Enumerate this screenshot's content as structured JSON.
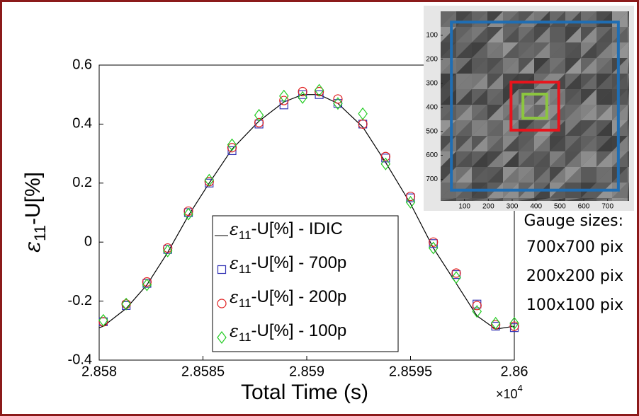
{
  "chart_data": {
    "type": "scatter",
    "xlabel": "Total Time (s)",
    "x_multiplier": "×10",
    "x_exponent": "4",
    "ylabel_symbol": "ε",
    "ylabel_sub": "11",
    "ylabel_rest": "-U[%]",
    "xlim": [
      2.858,
      2.86
    ],
    "xticks": [
      2.858,
      2.8585,
      2.859,
      2.8595,
      2.86
    ],
    "ylim": [
      -0.4,
      0.6
    ],
    "yticks": [
      -0.4,
      -0.2,
      0,
      0.2,
      0.4,
      0.6
    ],
    "series": [
      {
        "name": "ε11-U[%] - IDIC",
        "color": "#000000",
        "marker": "line",
        "x": [
          2.858,
          2.85802,
          2.85813,
          2.85823,
          2.85833,
          2.85843,
          2.85853,
          2.85864,
          2.85877,
          2.85889,
          2.85898,
          2.85906,
          2.85915,
          2.85927,
          2.85938,
          2.8595,
          2.85961,
          2.85972,
          2.85982,
          2.85991,
          2.86
        ],
        "values": [
          -0.29,
          -0.285,
          -0.225,
          -0.145,
          -0.035,
          0.09,
          0.2,
          0.315,
          0.41,
          0.475,
          0.5,
          0.5,
          0.47,
          0.39,
          0.27,
          0.13,
          -0.02,
          -0.14,
          -0.25,
          -0.295,
          -0.285
        ]
      },
      {
        "name": "ε11-U[%] - 700p",
        "color": "#3535b5",
        "marker": "square",
        "x": [
          2.85802,
          2.85813,
          2.85823,
          2.85833,
          2.85843,
          2.85853,
          2.85864,
          2.85877,
          2.85889,
          2.85898,
          2.85906,
          2.85915,
          2.85927,
          2.85938,
          2.8595,
          2.85961,
          2.85972,
          2.85982,
          2.85991,
          2.86
        ],
        "values": [
          -0.27,
          -0.215,
          -0.14,
          -0.025,
          0.1,
          0.2,
          0.31,
          0.4,
          0.465,
          0.5,
          0.5,
          0.47,
          0.4,
          0.285,
          0.15,
          -0.005,
          -0.11,
          -0.21,
          -0.285,
          -0.29
        ]
      },
      {
        "name": "ε11-U[%] - 200p",
        "color": "#e02020",
        "marker": "circle",
        "x": [
          2.85802,
          2.85813,
          2.85823,
          2.85833,
          2.85843,
          2.85853,
          2.85864,
          2.85877,
          2.85889,
          2.85898,
          2.85906,
          2.85915,
          2.85927,
          2.85938,
          2.8595,
          2.85961,
          2.85972,
          2.85982,
          2.85991,
          2.86
        ],
        "values": [
          -0.27,
          -0.21,
          -0.135,
          -0.02,
          0.105,
          0.205,
          0.32,
          0.405,
          0.48,
          0.51,
          0.51,
          0.485,
          0.4,
          0.29,
          0.155,
          0,
          -0.105,
          -0.215,
          -0.28,
          -0.285
        ]
      },
      {
        "name": "ε11-U[%] - 100p",
        "color": "#22cc22",
        "marker": "diamond",
        "x": [
          2.85802,
          2.85813,
          2.85823,
          2.85833,
          2.85843,
          2.85853,
          2.85864,
          2.85877,
          2.85889,
          2.85898,
          2.85906,
          2.85915,
          2.85927,
          2.85938,
          2.8595,
          2.85961,
          2.85972,
          2.85982,
          2.85991,
          2.86
        ],
        "values": [
          -0.265,
          -0.21,
          -0.145,
          -0.03,
          0.095,
          0.21,
          0.33,
          0.43,
          0.495,
          0.49,
          0.515,
          0.47,
          0.435,
          0.265,
          0.135,
          -0.02,
          -0.12,
          -0.235,
          -0.275,
          -0.275
        ]
      }
    ],
    "inset": {
      "xlim": [
        0,
        790
      ],
      "ylim": [
        0,
        790
      ],
      "xticks": [
        100,
        200,
        300,
        400,
        500,
        600,
        700
      ],
      "yticks": [
        100,
        200,
        300,
        400,
        500,
        600,
        700
      ],
      "gauge_title": "Gauge sizes:",
      "gauges": [
        {
          "size": 700,
          "label": "700x700 pix",
          "color": "#1f6eb4"
        },
        {
          "size": 200,
          "label": "200x200 pix",
          "color": "#e8141c"
        },
        {
          "size": 100,
          "label": "100x100 pix",
          "color": "#8cc63f"
        }
      ]
    }
  }
}
